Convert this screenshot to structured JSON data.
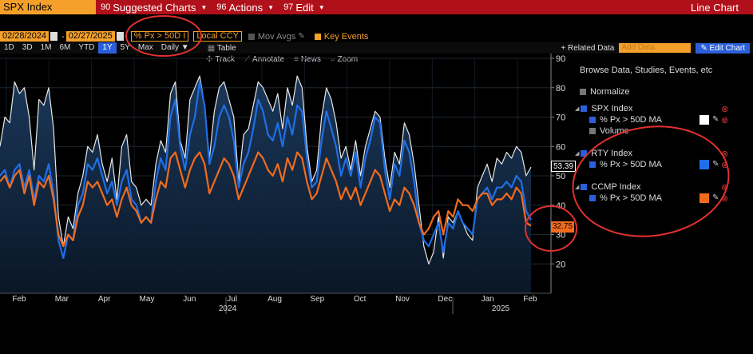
{
  "topbar": {
    "ticker": "SPX Index",
    "menus": [
      {
        "num": "90",
        "label": "Suggested Charts"
      },
      {
        "num": "96",
        "label": "Actions"
      },
      {
        "num": "97",
        "label": "Edit"
      }
    ],
    "chart_type": "Line Chart"
  },
  "controls": {
    "start_date": "02/28/2024",
    "end_date": "02/27/2025",
    "field": "% Px > 50D I",
    "currency": "Local CCY",
    "mov_avgs": "Mov Avgs",
    "key_events": "Key Events"
  },
  "periods": [
    "1D",
    "3D",
    "1M",
    "6M",
    "YTD",
    "1Y",
    "5Y",
    "Max"
  ],
  "selected_period": "1Y",
  "frequency": "Daily",
  "table_label": "Table",
  "related_data": "+ Related Data",
  "add_data_placeholder": "Add Data",
  "edit_chart": "Edit Chart",
  "tools": [
    "Track",
    "Annotate",
    "News",
    "Zoom"
  ],
  "panel": {
    "browse": "Browse Data, Studies, Events, etc",
    "normalize": "Normalize",
    "series": [
      {
        "name": "SPX Index",
        "study": "% Px > 50D MA",
        "color": "#ffffff",
        "extra": "Volume"
      },
      {
        "name": "RTY Index",
        "study": "% Px > 50D MA",
        "color": "#1f6fe8"
      },
      {
        "name": "CCMP Index",
        "study": "% Px > 50D MA",
        "color": "#f26b1d"
      }
    ]
  },
  "badges": {
    "spx_last": "53.39",
    "ccmp_last": "32.75"
  },
  "chart_data": {
    "type": "line",
    "x_labels": [
      "Feb",
      "Mar",
      "Apr",
      "May",
      "Jun",
      "Jul",
      "Aug",
      "Sep",
      "Oct",
      "Nov",
      "Dec",
      "Jan",
      "Feb"
    ],
    "year_labels": [
      "2024",
      "2025"
    ],
    "y_ticks": [
      20,
      30,
      40,
      50,
      60,
      70,
      80,
      90
    ],
    "ylim": [
      10,
      90
    ],
    "series": [
      {
        "name": "SPX Index",
        "color": "#e8e8e8",
        "values": [
          60,
          70,
          68,
          82,
          78,
          80,
          70,
          52,
          76,
          74,
          80,
          66,
          36,
          26,
          36,
          32,
          44,
          50,
          60,
          58,
          64,
          54,
          48,
          56,
          42,
          60,
          64,
          48,
          46,
          40,
          42,
          40,
          54,
          62,
          58,
          78,
          82,
          62,
          56,
          76,
          80,
          84,
          74,
          56,
          72,
          80,
          82,
          76,
          70,
          48,
          64,
          66,
          74,
          82,
          80,
          76,
          72,
          78,
          66,
          80,
          74,
          84,
          80,
          60,
          48,
          52,
          70,
          80,
          76,
          68,
          56,
          60,
          52,
          62,
          50,
          60,
          66,
          72,
          70,
          56,
          46,
          58,
          54,
          68,
          64,
          54,
          40,
          26,
          20,
          24,
          36,
          22,
          36,
          34,
          38,
          34,
          30,
          28,
          46,
          50,
          54,
          48,
          56,
          54,
          58,
          56,
          60,
          58,
          50,
          53
        ]
      },
      {
        "name": "RTY Index",
        "color": "#1f6fe8",
        "values": [
          50,
          52,
          46,
          52,
          54,
          46,
          52,
          42,
          50,
          48,
          54,
          44,
          28,
          22,
          30,
          28,
          40,
          44,
          54,
          52,
          56,
          50,
          44,
          48,
          40,
          48,
          52,
          42,
          40,
          34,
          36,
          34,
          48,
          56,
          52,
          70,
          76,
          60,
          52,
          64,
          70,
          82,
          74,
          54,
          60,
          70,
          74,
          70,
          62,
          46,
          54,
          58,
          66,
          76,
          72,
          64,
          62,
          68,
          60,
          70,
          64,
          74,
          72,
          56,
          46,
          48,
          62,
          72,
          66,
          60,
          50,
          56,
          50,
          58,
          46,
          56,
          62,
          70,
          68,
          52,
          42,
          54,
          50,
          62,
          58,
          48,
          34,
          28,
          26,
          30,
          34,
          24,
          34,
          32,
          38,
          34,
          32,
          30,
          42,
          44,
          46,
          42,
          46,
          46,
          48,
          46,
          50,
          48,
          38,
          35
        ]
      },
      {
        "name": "CCMP Index",
        "color": "#f26b1d",
        "values": [
          48,
          50,
          46,
          50,
          52,
          44,
          50,
          40,
          48,
          46,
          50,
          42,
          30,
          26,
          30,
          28,
          36,
          40,
          48,
          46,
          48,
          44,
          40,
          42,
          36,
          42,
          46,
          40,
          38,
          34,
          36,
          34,
          42,
          48,
          46,
          56,
          58,
          52,
          46,
          52,
          56,
          58,
          54,
          44,
          48,
          52,
          56,
          54,
          50,
          42,
          46,
          50,
          54,
          58,
          56,
          52,
          50,
          54,
          48,
          56,
          52,
          58,
          56,
          48,
          42,
          44,
          50,
          56,
          52,
          48,
          42,
          46,
          42,
          46,
          40,
          44,
          48,
          52,
          50,
          44,
          38,
          42,
          40,
          46,
          44,
          40,
          34,
          30,
          32,
          36,
          38,
          30,
          38,
          36,
          42,
          40,
          40,
          38,
          42,
          44,
          44,
          40,
          42,
          42,
          44,
          42,
          46,
          44,
          34,
          33
        ]
      }
    ]
  }
}
